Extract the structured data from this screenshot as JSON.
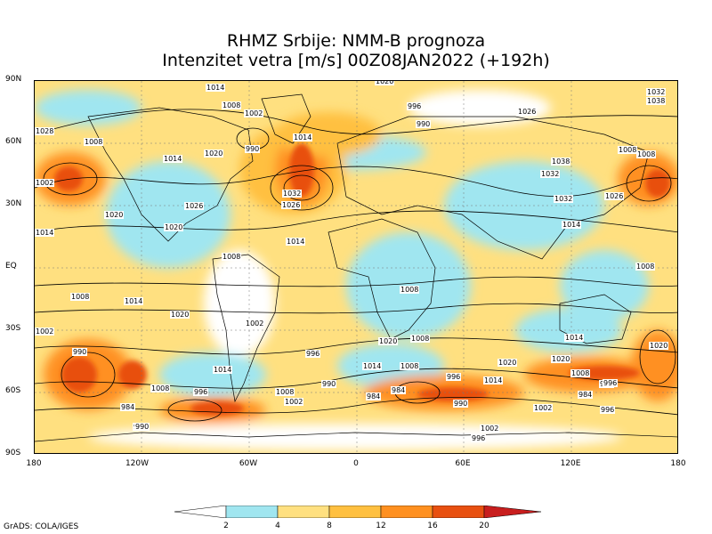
{
  "title_line1": "RHMZ Srbije: NMM-B prognoza",
  "title_line2": "Intenzitet vetra [m/s] 00Z08JAN2022 (+192h)",
  "credit": "GrADS: COLA/IGES",
  "lat_labels": [
    "90N",
    "60N",
    "30N",
    "EQ",
    "30S",
    "60S",
    "90S"
  ],
  "lon_labels": [
    "180",
    "120W",
    "60W",
    "0",
    "60E",
    "120E",
    "180"
  ],
  "colorbar": {
    "ticks": [
      "2",
      "4",
      "8",
      "12",
      "16",
      "20"
    ],
    "colors": [
      "#ffffff",
      "#a0e6f0",
      "#ffe080",
      "#ffc040",
      "#ff9020",
      "#e85010",
      "#c81e1e"
    ]
  },
  "isobar_labels": [
    "1020",
    "1014",
    "1008",
    "1002",
    "996",
    "990",
    "1032",
    "1038",
    "1028",
    "1026",
    "1014",
    "1008",
    "1002",
    "990",
    "1032",
    "1026",
    "1032",
    "1020",
    "1014",
    "1008",
    "1014",
    "1008",
    "1002",
    "1002",
    "1008",
    "1014",
    "1020",
    "1026",
    "1020",
    "1014",
    "1008",
    "1020",
    "1014",
    "1008",
    "1002",
    "996",
    "990",
    "984",
    "1008",
    "996",
    "990",
    "984",
    "1014",
    "1008",
    "1002",
    "990",
    "1020",
    "1014",
    "996",
    "1008",
    "1020",
    "1014",
    "1008",
    "990",
    "984",
    "996",
    "1026",
    "1020",
    "1008",
    "1002",
    "984",
    "996",
    "990",
    "996",
    "996",
    "1020",
    "1014",
    "1008",
    "1032",
    "1038"
  ]
}
